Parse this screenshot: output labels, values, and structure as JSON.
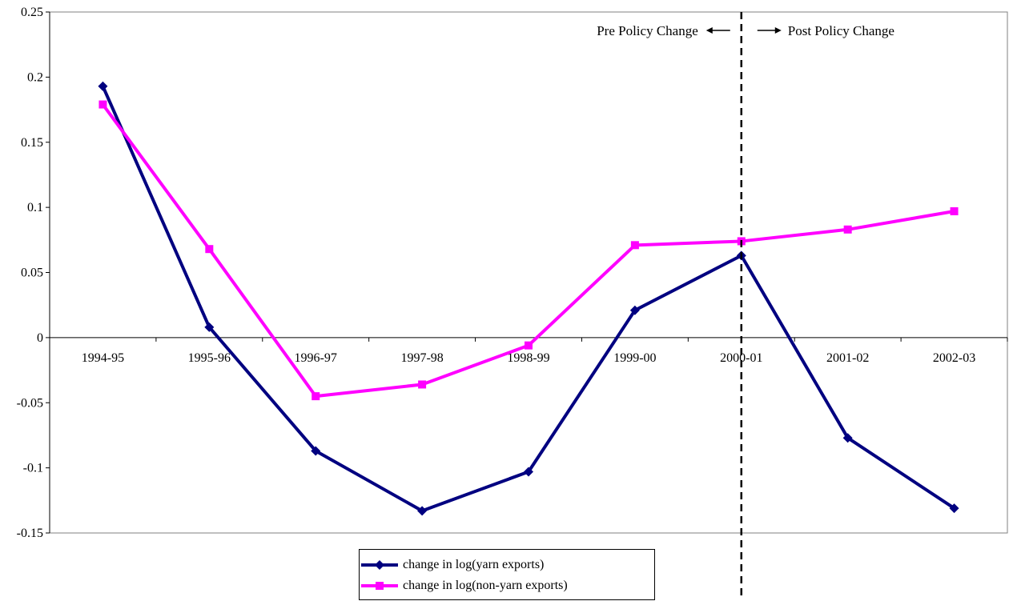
{
  "chart_data": {
    "type": "line",
    "categories": [
      "1994-95",
      "1995-96",
      "1996-97",
      "1997-98",
      "1998-99",
      "1999-00",
      "2000-01",
      "2001-02",
      "2002-03"
    ],
    "series": [
      {
        "name": "change in log(yarn exports)",
        "color": "#000080",
        "marker": "diamond",
        "values": [
          0.193,
          0.008,
          -0.087,
          -0.133,
          -0.103,
          0.021,
          0.063,
          -0.077,
          -0.131
        ]
      },
      {
        "name": "change in log(non-yarn exports)",
        "color": "#FF00FF",
        "marker": "square",
        "values": [
          0.179,
          0.068,
          -0.045,
          -0.036,
          -0.006,
          0.071,
          0.074,
          0.083,
          0.097
        ]
      }
    ],
    "ylim": [
      -0.15,
      0.25
    ],
    "yticks": [
      -0.15,
      -0.1,
      -0.05,
      0,
      0.05,
      0.1,
      0.15,
      0.2,
      0.25
    ],
    "ytick_labels": [
      "-0.15",
      "-0.1",
      "-0.05",
      "0",
      "0.05",
      "0.1",
      "0.15",
      "0.2",
      "0.25"
    ],
    "grid": false,
    "legend_position": "bottom",
    "policy_change_category": "2000-01",
    "annotations": {
      "pre": "Pre Policy Change",
      "post": "Post Policy Change"
    }
  }
}
